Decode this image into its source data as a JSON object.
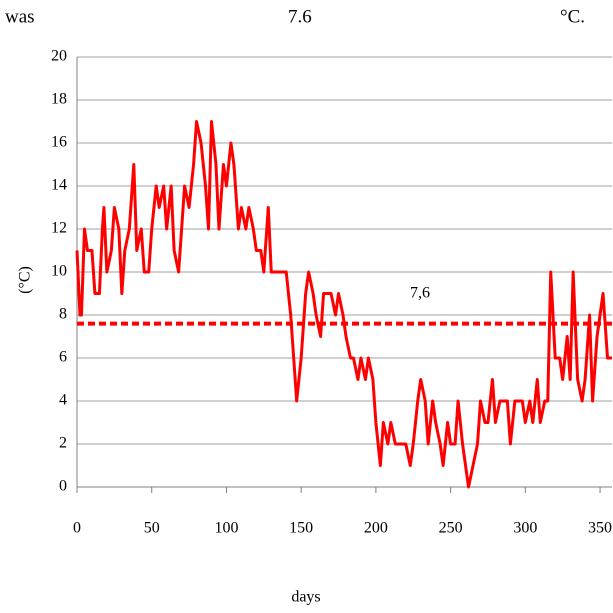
{
  "header": {
    "texts": [
      "was",
      "7.6",
      "°C."
    ]
  },
  "chart_data": {
    "type": "line",
    "x_label": "days",
    "y_label": "(°C)",
    "x": [
      0,
      2,
      3,
      5,
      7,
      10,
      12,
      15,
      17,
      18,
      20,
      23,
      25,
      28,
      30,
      32,
      35,
      38,
      40,
      43,
      45,
      48,
      50,
      53,
      55,
      58,
      60,
      63,
      65,
      68,
      70,
      72,
      75,
      78,
      80,
      83,
      86,
      88,
      90,
      93,
      95,
      98,
      100,
      103,
      105,
      108,
      110,
      113,
      115,
      118,
      120,
      123,
      125,
      128,
      130,
      133,
      136,
      140,
      143,
      145,
      147,
      150,
      153,
      155,
      158,
      160,
      163,
      165,
      168,
      170,
      173,
      175,
      178,
      180,
      183,
      185,
      188,
      190,
      193,
      195,
      198,
      200,
      203,
      205,
      208,
      210,
      213,
      215,
      218,
      220,
      223,
      225,
      228,
      230,
      233,
      235,
      238,
      240,
      243,
      245,
      248,
      250,
      253,
      255,
      258,
      260,
      262,
      265,
      268,
      270,
      273,
      275,
      278,
      280,
      283,
      285,
      288,
      290,
      293,
      295,
      298,
      300,
      303,
      305,
      308,
      310,
      313,
      315,
      317,
      320,
      323,
      325,
      328,
      330,
      332,
      335,
      338,
      340,
      343,
      345,
      348,
      350,
      352,
      355,
      358
    ],
    "series": [
      {
        "color": "#ff0000",
        "values": [
          11,
          8,
          8,
          12,
          11,
          11,
          9,
          9,
          12,
          13,
          10,
          11,
          13,
          12,
          9,
          11,
          12,
          15,
          11,
          12,
          10,
          10,
          12,
          14,
          13,
          14,
          12,
          14,
          11,
          10,
          12,
          14,
          13,
          15,
          17,
          16,
          14,
          12,
          17,
          15,
          12,
          15,
          14,
          16,
          15,
          12,
          13,
          12,
          13,
          12,
          11,
          11,
          10,
          13,
          10,
          10,
          10,
          10,
          8,
          6,
          4,
          6,
          9,
          10,
          9,
          8,
          7,
          9,
          9,
          9,
          8,
          9,
          8,
          7,
          6,
          6,
          5,
          6,
          5,
          6,
          5,
          3,
          1,
          3,
          2,
          3,
          2,
          2,
          2,
          2,
          1,
          2,
          4,
          5,
          4,
          2,
          4,
          3,
          2,
          1,
          3,
          2,
          2,
          4,
          2,
          1,
          0,
          1,
          2,
          4,
          3,
          3,
          5,
          3,
          4,
          4,
          4,
          2,
          4,
          4,
          4,
          3,
          4,
          3,
          5,
          3,
          4,
          4,
          10,
          6,
          6,
          5,
          7,
          5,
          10,
          5,
          4,
          5,
          8,
          4,
          7,
          8,
          9,
          6,
          6
        ]
      }
    ],
    "hlines": [
      {
        "value": 7.6,
        "label": "7,6",
        "color": "#ff0000"
      }
    ],
    "xlim": [
      0,
      358
    ],
    "xticks": [
      0,
      50,
      100,
      150,
      200,
      250,
      300,
      350
    ],
    "ylim": [
      0,
      20
    ],
    "yticks": [
      0,
      2,
      4,
      6,
      8,
      10,
      12,
      14,
      16,
      18,
      20
    ],
    "grid": true
  }
}
